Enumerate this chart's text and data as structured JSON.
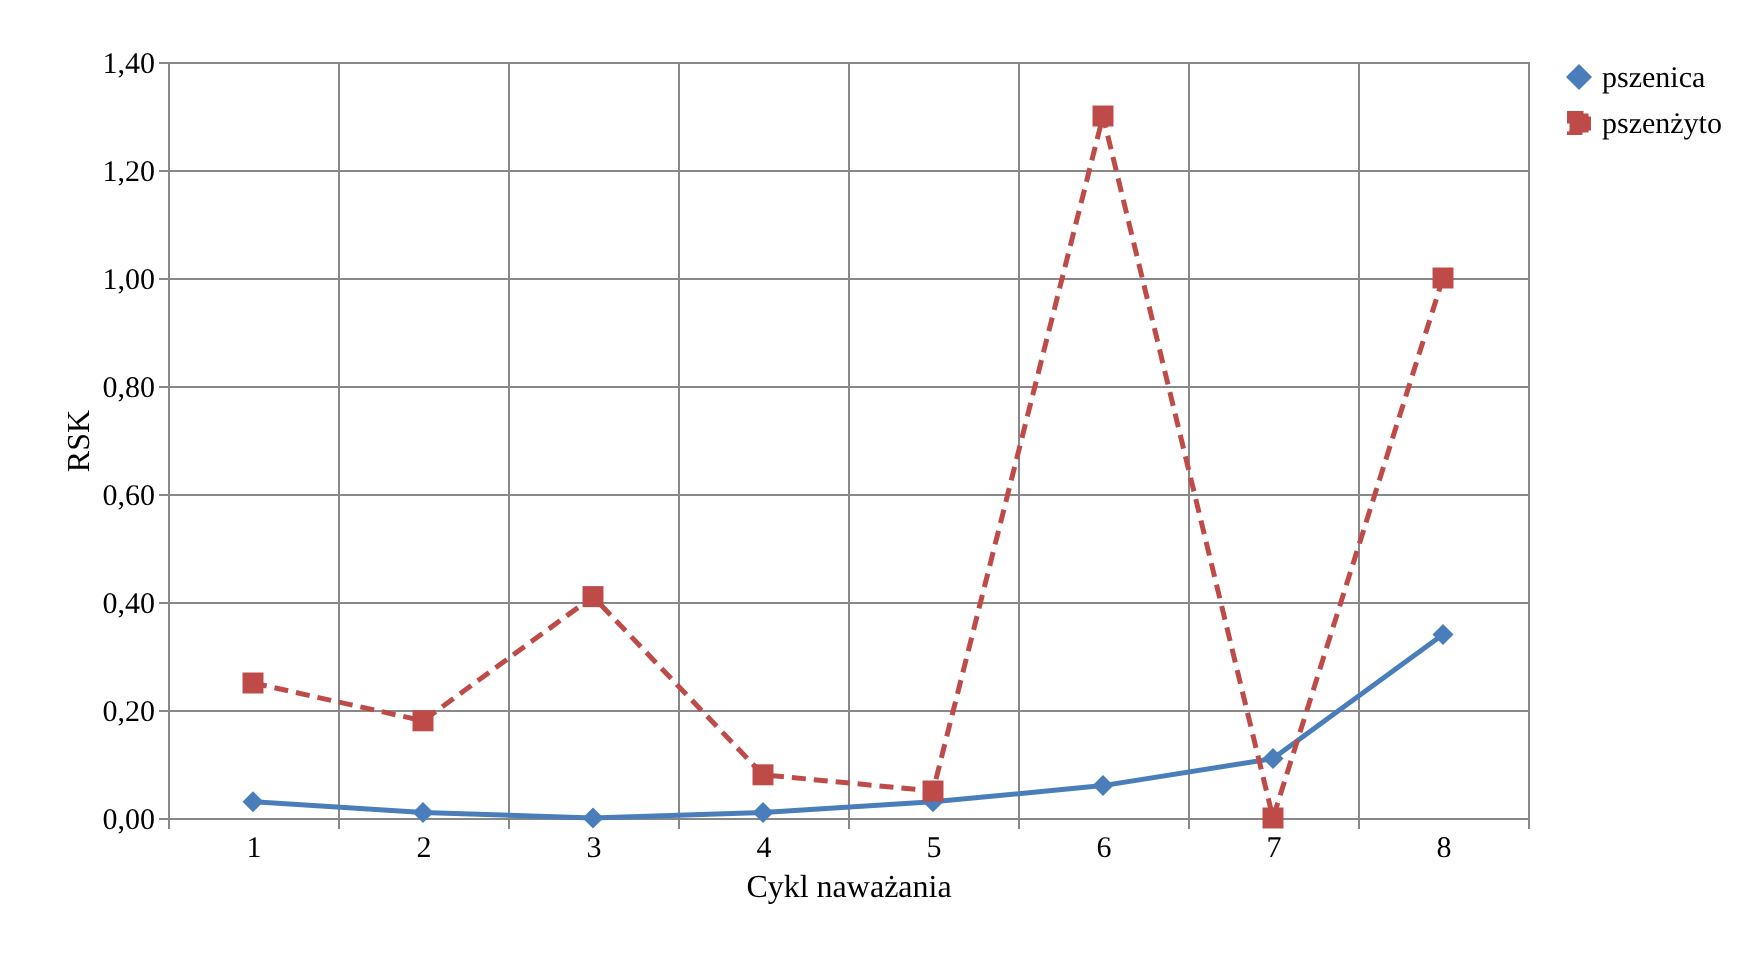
{
  "chart_data": {
    "type": "line",
    "xlabel": "Cykl naważania",
    "ylabel": "RSK",
    "categories": [
      "1",
      "2",
      "3",
      "4",
      "5",
      "6",
      "7",
      "8"
    ],
    "series": [
      {
        "name": "pszenica",
        "color": "#4a7ebb",
        "marker": "diamond",
        "line_style": "solid",
        "values": [
          0.03,
          0.01,
          0.0,
          0.01,
          0.03,
          0.06,
          0.11,
          0.34
        ]
      },
      {
        "name": "pszenżyto",
        "color": "#be4b48",
        "marker": "square",
        "line_style": "dashed",
        "values": [
          0.25,
          0.18,
          0.41,
          0.08,
          0.05,
          1.3,
          0.0,
          1.0
        ]
      }
    ],
    "ylim": [
      0,
      1.4
    ],
    "yticks": [
      {
        "value": 0,
        "label": "0,00"
      },
      {
        "value": 0.2,
        "label": "0,20"
      },
      {
        "value": 0.4,
        "label": "0,40"
      },
      {
        "value": 0.6,
        "label": "0,60"
      },
      {
        "value": 0.8,
        "label": "0,80"
      },
      {
        "value": 1.0,
        "label": "1,00"
      },
      {
        "value": 1.2,
        "label": "1,20"
      },
      {
        "value": 1.4,
        "label": "1,40"
      }
    ],
    "grid": true,
    "legend": "right"
  }
}
